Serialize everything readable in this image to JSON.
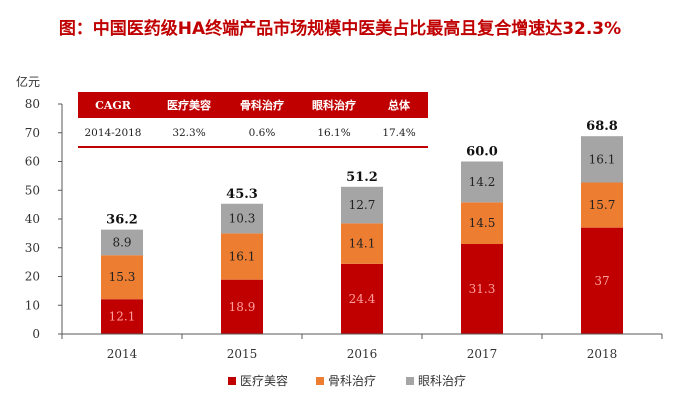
{
  "title": "图：中国医药级HA终端产品市场规模中医美占比最高且复合增速达32.3%",
  "chart_data": {
    "type": "bar",
    "stacked": true,
    "unit": "亿元",
    "categories": [
      "2014",
      "2015",
      "2016",
      "2017",
      "2018"
    ],
    "series": [
      {
        "name": "医疗美容",
        "color": "#c00000",
        "values": [
          12.1,
          18.9,
          24.4,
          31.3,
          37
        ]
      },
      {
        "name": "骨科治疗",
        "color": "#ed7d31",
        "values": [
          15.3,
          16.1,
          14.1,
          14.5,
          15.7
        ]
      },
      {
        "name": "眼科治疗",
        "color": "#a5a5a5",
        "values": [
          8.9,
          10.3,
          12.7,
          14.2,
          16.1
        ]
      }
    ],
    "totals": [
      "36.2",
      "45.3",
      "51.2",
      "60.0",
      "68.8"
    ],
    "ylim": [
      0,
      80
    ],
    "yticks": [
      "0",
      "10",
      "20",
      "30",
      "40",
      "50",
      "60",
      "70",
      "80"
    ],
    "grid": false,
    "legend": "bottom"
  },
  "cagr_table": {
    "headers": [
      "CAGR",
      "医疗美容",
      "骨科治疗",
      "眼科治疗",
      "总体"
    ],
    "row": [
      "2014-2018",
      "32.3%",
      "0.6%",
      "16.1%",
      "17.4%"
    ],
    "header_color": "#c00000"
  }
}
